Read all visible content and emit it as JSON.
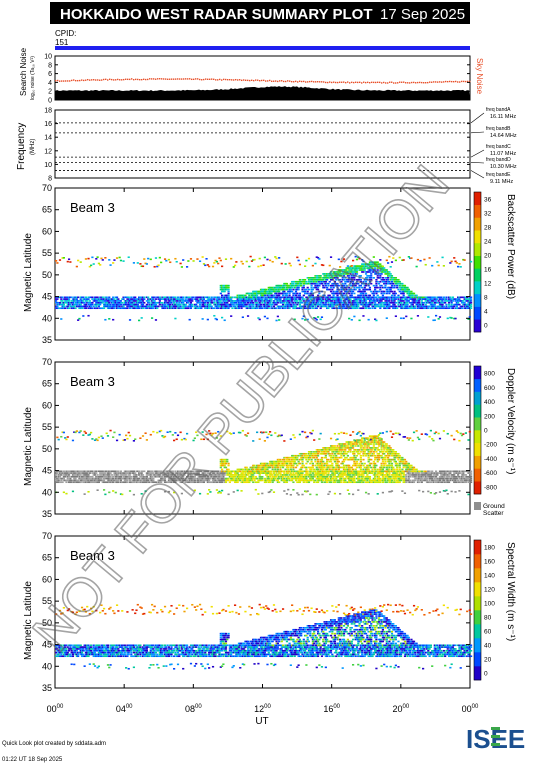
{
  "header": {
    "title": "HOKKAIDO WEST RADAR SUMMARY PLOT",
    "date": "17 Sep 2025",
    "cpid_label": "CPID:",
    "cpid_value": "151"
  },
  "noise_panel": {
    "ylabel": "Search Noise",
    "ysublabel": "log₁₀ noise (Ta₁₀ V²)",
    "ticks": [
      "0",
      "2",
      "4",
      "6",
      "8",
      "10"
    ],
    "right_label": "Sky Noise",
    "right_color": "#e8502a"
  },
  "freq_panel": {
    "ylabel": "Frequency",
    "yunit": "(MHz)",
    "ticks": [
      "8",
      "10",
      "12",
      "14",
      "16",
      "18"
    ],
    "bands": [
      {
        "name": "freq bandA",
        "value": "16.11 MHz"
      },
      {
        "name": "freq bandB",
        "value": "14.64 MHz"
      },
      {
        "name": "freq bandC",
        "value": "11.07 MHz"
      },
      {
        "name": "freq bandD",
        "value": "10.30 MHz"
      },
      {
        "name": "freq bandE",
        "value": "9.11 MHz"
      }
    ]
  },
  "panels": [
    {
      "beam": "Beam  3",
      "ylabel": "Magnetic Latitude",
      "cblabel": "Backscatter Power (dB)",
      "cbticks": [
        "0",
        "4",
        "8",
        "12",
        "16",
        "20",
        "24",
        "28",
        "32",
        "36"
      ],
      "cbtype": "power"
    },
    {
      "beam": "Beam  3",
      "ylabel": "Magnetic Latitude",
      "cblabel": "Doppler Velocity (m s⁻¹)",
      "cbticks": [
        "-800",
        "-600",
        "-400",
        "-200",
        "0",
        "200",
        "400",
        "600",
        "800"
      ],
      "cbtype": "velocity",
      "ground_label": "Ground",
      "ground_label2": "Scatter"
    },
    {
      "beam": "Beam  3",
      "ylabel": "Magnetic Latitude",
      "cblabel": "Spectral Width (m s⁻¹)",
      "cbticks": [
        "0",
        "20",
        "40",
        "60",
        "80",
        "100",
        "120",
        "140",
        "160",
        "180"
      ],
      "cbtype": "width"
    }
  ],
  "axes": {
    "lat_ticks": [
      "35",
      "40",
      "45",
      "50",
      "55",
      "60",
      "65",
      "70"
    ],
    "x_ticks": [
      {
        "h": "00",
        "m": "00"
      },
      {
        "h": "04",
        "m": "00"
      },
      {
        "h": "08",
        "m": "00"
      },
      {
        "h": "12",
        "m": "00"
      },
      {
        "h": "16",
        "m": "00"
      },
      {
        "h": "20",
        "m": "00"
      },
      {
        "h": "00",
        "m": "00"
      }
    ],
    "xlabel": "UT"
  },
  "chart_data": [
    {
      "type": "bar",
      "title": "Search Noise",
      "xlabel": "UT",
      "ylim": [
        0,
        10
      ],
      "x": [
        "00:00",
        "04:00",
        "08:00",
        "12:00",
        "16:00",
        "20:00",
        "24:00"
      ],
      "series": [
        {
          "name": "Sky Noise",
          "values": [
            4.5,
            4.5,
            4.6,
            4.8,
            4.9,
            4.2,
            4.4
          ]
        },
        {
          "values": [
            2.0,
            2.1,
            2.2,
            2.6,
            3.2,
            2.2,
            2.4
          ]
        }
      ]
    },
    {
      "type": "line",
      "ylabel": "Frequency",
      "ylim": [
        8,
        18
      ],
      "series": [
        {
          "name": "freq bandA",
          "values": [
            16.11
          ]
        },
        {
          "name": "freq bandB",
          "values": [
            14.64
          ]
        },
        {
          "name": "freq bandC",
          "values": [
            11.07
          ]
        },
        {
          "name": "freq bandD",
          "values": [
            10.3
          ]
        },
        {
          "name": "freq bandE",
          "values": [
            9.11
          ]
        }
      ]
    },
    {
      "type": "heatmap",
      "title": "Beam  3",
      "ylabel": "Magnetic Latitude",
      "xlabel": "UT",
      "xlim": [
        0,
        24
      ],
      "ylim": [
        35,
        70
      ],
      "colorbar": "Backscatter Power (dB)",
      "clim": [
        0,
        36
      ],
      "scatter_bands_lat": [
        [
          43,
          45
        ],
        [
          40,
          41
        ],
        [
          52,
          54
        ]
      ]
    },
    {
      "type": "heatmap",
      "title": "Beam  3",
      "ylabel": "Magnetic Latitude",
      "xlabel": "UT",
      "xlim": [
        0,
        24
      ],
      "ylim": [
        35,
        70
      ],
      "colorbar": "Doppler Velocity (m s⁻¹)",
      "clim": [
        -800,
        800
      ]
    },
    {
      "type": "heatmap",
      "title": "Beam  3",
      "ylabel": "Magnetic Latitude",
      "xlabel": "UT",
      "xlim": [
        0,
        24
      ],
      "ylim": [
        35,
        70
      ],
      "colorbar": "Spectral Width (m s⁻¹)",
      "clim": [
        0,
        180
      ]
    }
  ],
  "watermark": "NOT FOR PUBLICATION",
  "footer": {
    "line1": "Quick Look plot created by sddata.adm",
    "line2": "01:22 UT 18 Sep 2025",
    "logo": "ISEE"
  }
}
